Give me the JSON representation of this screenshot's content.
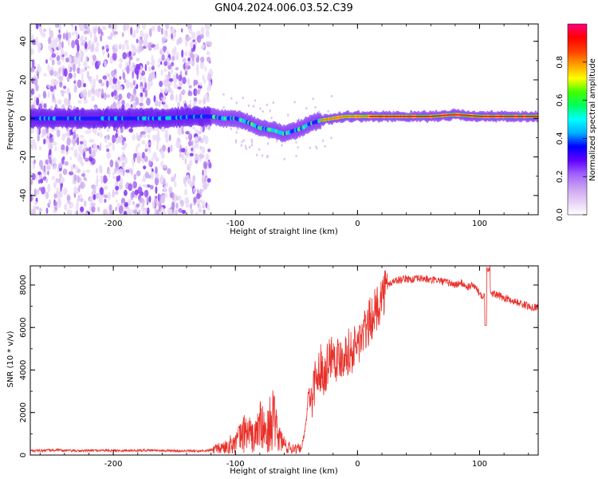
{
  "title": "GN04.2024.006.03.52.C39",
  "chart_data": [
    {
      "type": "heatmap",
      "xlabel": "Height of straight line (km)",
      "ylabel": "Frequency (Hz)",
      "xlim": [
        -268,
        148
      ],
      "ylim": [
        -50,
        49
      ],
      "xticks": [
        -200,
        -100,
        0,
        100
      ],
      "xtick_labels": [
        "-200",
        "-100",
        "0",
        "100"
      ],
      "yticks": [
        -40,
        -20,
        0,
        20,
        40
      ],
      "ytick_labels": [
        "-40",
        "-20",
        "0",
        "20",
        "40"
      ],
      "noise_region_x": [
        -268,
        -120
      ],
      "carrier_trace": {
        "x": [
          -268,
          -240,
          -200,
          -160,
          -130,
          -120,
          -110,
          -100,
          -90,
          -80,
          -70,
          -65,
          -60,
          -55,
          -50,
          -45,
          -40,
          -35,
          -30,
          -20,
          -10,
          0,
          20,
          40,
          60,
          80,
          100,
          120,
          148
        ],
        "y": [
          0,
          0,
          0,
          0,
          1,
          1,
          0,
          0,
          -2,
          -5,
          -6,
          -7,
          -8,
          -7,
          -6,
          -5,
          -3,
          -2,
          -1,
          0,
          1,
          1,
          1,
          1,
          1,
          2,
          1,
          1,
          1
        ]
      },
      "colorbar": {
        "label": "Normalized spectral amplitude",
        "range": [
          0,
          1
        ],
        "ticks": [
          0,
          0.2,
          0.4,
          0.6,
          0.8
        ],
        "tick_labels": [
          "0.0",
          "0.2",
          "0.4",
          "0.6",
          "0.8"
        ],
        "colors": [
          "#ffffff",
          "#e6cff5",
          "#c8a0f0",
          "#a060ff",
          "#6000ff",
          "#0000ff",
          "#00b0ff",
          "#00ffff",
          "#00ff60",
          "#40ff00",
          "#ffff00",
          "#ffa000",
          "#ff4000",
          "#ff0000",
          "#ff0080"
        ]
      }
    },
    {
      "type": "line",
      "xlabel": "Height of straight line (km)",
      "ylabel": "SNR (10 * v/v)",
      "xlim": [
        -268,
        148
      ],
      "ylim": [
        0,
        8900
      ],
      "xticks": [
        -200,
        -100,
        0,
        100
      ],
      "xtick_labels": [
        "-200",
        "-100",
        "0",
        "100"
      ],
      "yticks": [
        0,
        2000,
        4000,
        6000,
        8000
      ],
      "ytick_labels": [
        "0",
        "2000",
        "4000",
        "6000",
        "8000"
      ],
      "color": "#e8302a",
      "series": [
        {
          "x": [
            -268,
            -250,
            -230,
            -210,
            -190,
            -170,
            -150,
            -130,
            -120,
            -110,
            -100,
            -95,
            -90,
            -85,
            -80,
            -75,
            -70,
            -65,
            -60,
            -55,
            -50,
            -47,
            -45,
            -42,
            -40,
            -38,
            -35,
            -32,
            -30,
            -27,
            -25,
            -22,
            -20,
            -17,
            -15,
            -12,
            -10,
            -7,
            -5,
            -3,
            0,
            3,
            5,
            8,
            10,
            13,
            15,
            18,
            20,
            23,
            25,
            30,
            35,
            40,
            45,
            50,
            55,
            60,
            65,
            70,
            75,
            80,
            85,
            90,
            95,
            100,
            103,
            105,
            107,
            110,
            115,
            120,
            125,
            130,
            135,
            140,
            148
          ],
          "y": [
            200,
            230,
            200,
            220,
            210,
            230,
            200,
            180,
            220,
            350,
            600,
            900,
            1200,
            700,
            1500,
            900,
            1800,
            900,
            500,
            300,
            350,
            300,
            500,
            1500,
            3200,
            2500,
            3500,
            3800,
            4200,
            3800,
            4300,
            4700,
            4900,
            4500,
            4600,
            4700,
            4800,
            4900,
            4800,
            5000,
            5200,
            5500,
            5700,
            6000,
            6300,
            6600,
            6800,
            7200,
            7500,
            7800,
            8000,
            8200,
            8250,
            8300,
            8250,
            8300,
            8300,
            8200,
            8250,
            8150,
            8100,
            8000,
            8100,
            7900,
            8000,
            7600,
            7500,
            7700,
            7800,
            7600,
            7500,
            7400,
            7300,
            7200,
            7100,
            7000,
            6950
          ]
        }
      ]
    }
  ]
}
